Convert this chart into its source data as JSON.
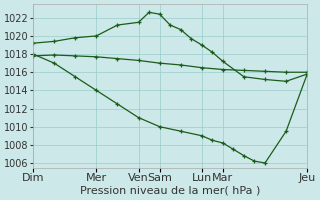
{
  "background_color": "#cce8e8",
  "grid_color": "#99cccc",
  "line_color": "#1a5c1a",
  "xlabels": [
    "Dim",
    "Mer",
    "Ven",
    "Sam",
    "Lun",
    "Mar",
    "Jeu"
  ],
  "xlabel": "Pression niveau de la mer( hPa )",
  "ylim": [
    1005.5,
    1023.5
  ],
  "yticks": [
    1006,
    1008,
    1010,
    1012,
    1014,
    1016,
    1018,
    1020,
    1022
  ],
  "x_tick_positions": [
    0,
    3,
    5,
    6,
    8,
    9,
    13
  ],
  "xlabel_fontsize": 8,
  "ylabel_fontsize": 7,
  "line1_x": [
    0,
    1,
    2,
    3,
    4,
    5,
    5.5,
    6,
    6.5,
    7,
    7.5,
    8,
    8.5,
    9,
    10,
    11,
    12,
    13
  ],
  "line1_y": [
    1019.2,
    1019.4,
    1019.8,
    1020.0,
    1021.2,
    1021.5,
    1022.6,
    1022.4,
    1021.2,
    1020.7,
    1019.7,
    1019.0,
    1018.2,
    1017.2,
    1015.5,
    1015.2,
    1015.0,
    1015.8
  ],
  "line2_x": [
    0,
    1,
    2,
    3,
    4,
    5,
    6,
    7,
    8,
    9,
    10,
    11,
    12,
    13
  ],
  "line2_y": [
    1017.8,
    1017.9,
    1017.8,
    1017.7,
    1017.5,
    1017.3,
    1017.0,
    1016.8,
    1016.5,
    1016.3,
    1016.2,
    1016.1,
    1016.0,
    1016.0
  ],
  "line3_x": [
    0,
    1,
    2,
    3,
    4,
    5,
    6,
    7,
    8,
    8.5,
    9,
    9.5,
    10,
    10.5,
    11,
    12,
    13
  ],
  "line3_y": [
    1018.0,
    1017.0,
    1015.5,
    1014.0,
    1012.5,
    1011.0,
    1010.0,
    1009.5,
    1009.0,
    1008.5,
    1008.2,
    1007.5,
    1006.8,
    1006.2,
    1006.0,
    1009.5,
    1015.8
  ]
}
